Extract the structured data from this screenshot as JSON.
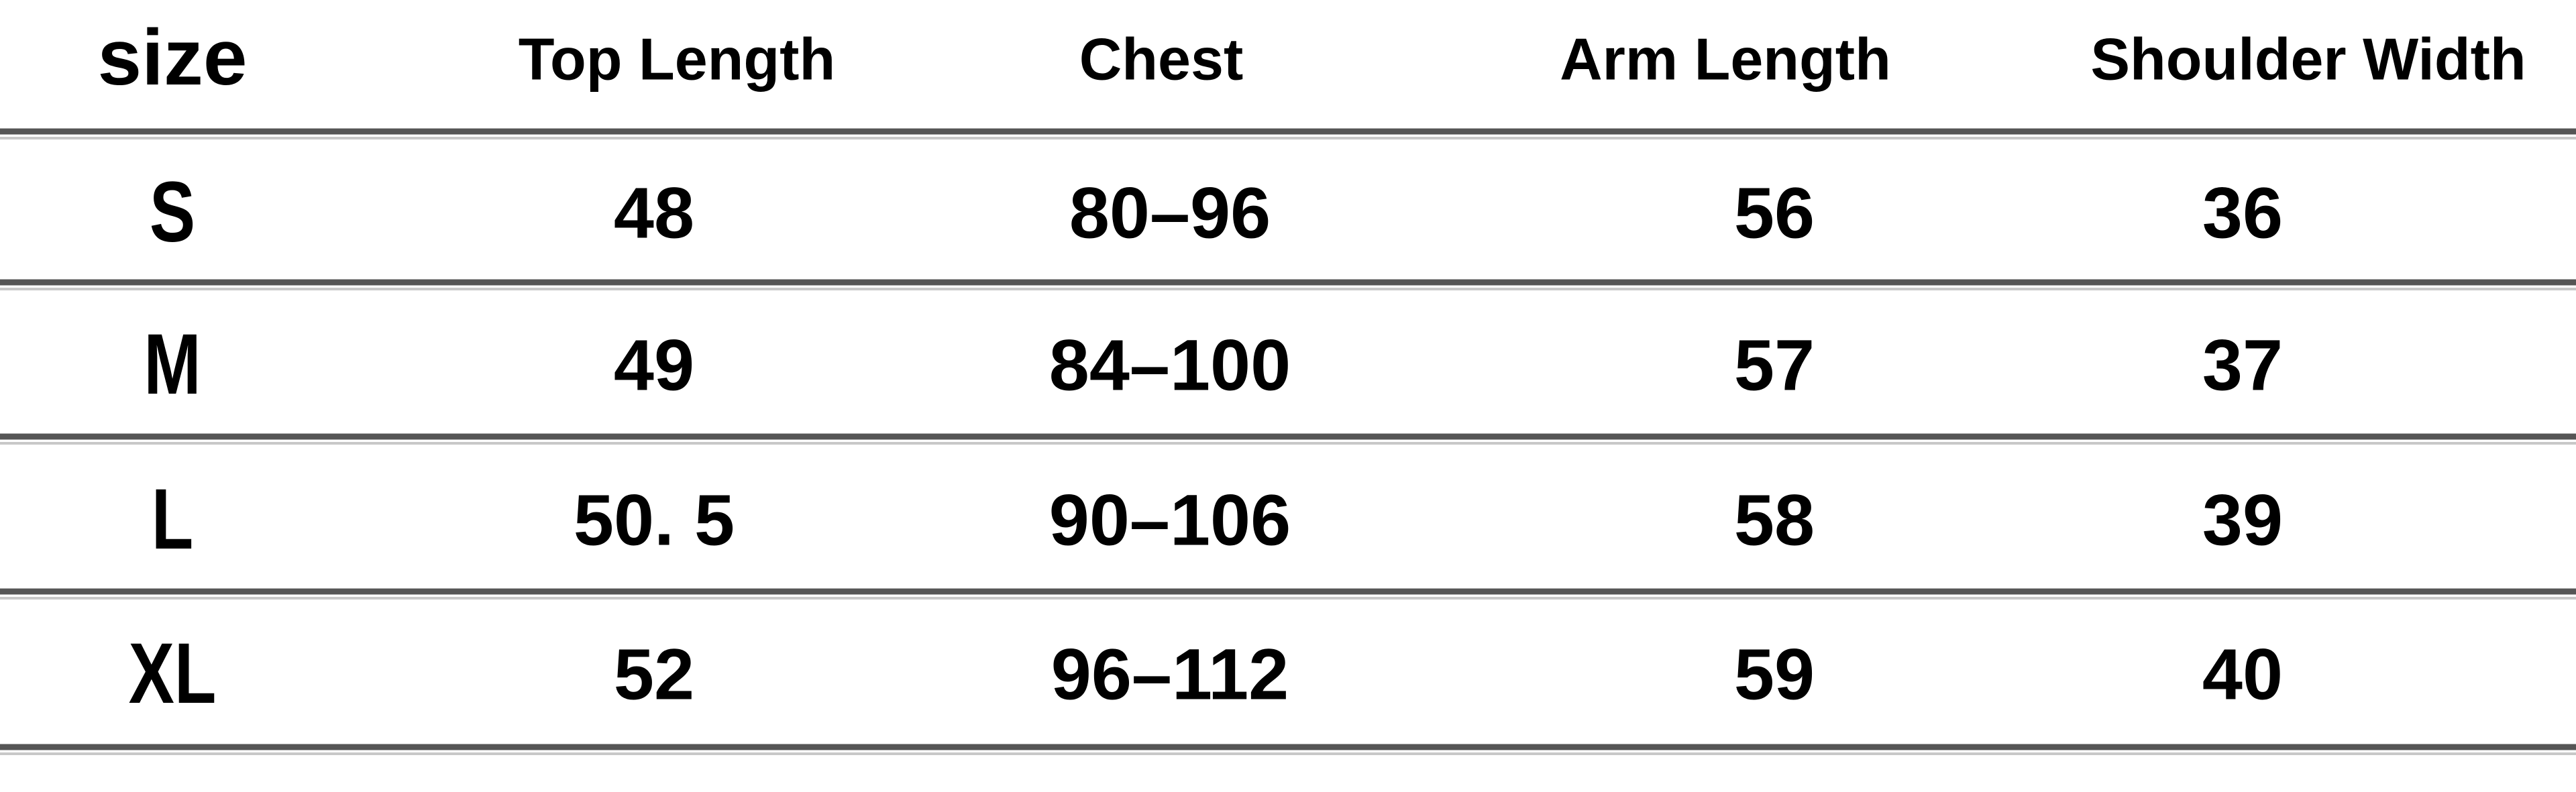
{
  "table": {
    "header": [
      "size",
      "Top Length",
      "Chest",
      "Arm Length",
      "Shoulder Width"
    ],
    "rows": [
      [
        "S",
        "48",
        "80–96",
        "56",
        "36"
      ],
      [
        "M",
        "49",
        "84–100",
        "57",
        "37"
      ],
      [
        "L",
        "50. 5",
        "90–106",
        "58",
        "39"
      ],
      [
        "XL",
        "52",
        "96–112",
        "59",
        "40"
      ]
    ]
  }
}
